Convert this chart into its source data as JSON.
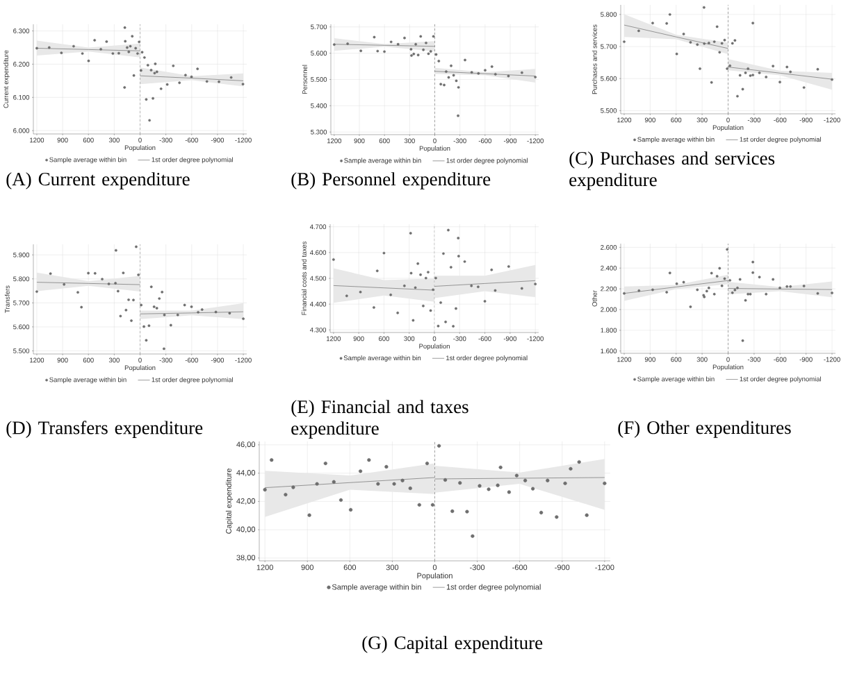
{
  "chart_data": [
    {
      "type": "scatter",
      "title": "(A) Current expenditure",
      "xlabel": "Population",
      "ylabel": "Current expenditure",
      "xlim": [
        1240,
        -1240
      ],
      "ylim": [
        5990,
        6320
      ],
      "xticks": [
        1200,
        900,
        600,
        300,
        0,
        -300,
        -600,
        -900,
        -1200
      ],
      "yticks": [
        {
          "value": 6000,
          "label": "6.000"
        },
        {
          "value": 6100,
          "label": "6.100"
        },
        {
          "value": 6200,
          "label": "6.200"
        },
        {
          "value": 6300,
          "label": "6.300"
        }
      ],
      "grid": true,
      "legend": "bottom",
      "marker": "circle",
      "ref_lines": [
        {
          "axis": "x",
          "value": 0,
          "color": "#555555",
          "line_style": "dashed"
        }
      ],
      "series": [
        {
          "name": "Sample average within bin",
          "color": "#6e6e6e",
          "x": [
            1200,
            1056,
            914,
            772,
            670,
            598,
            528,
            456,
            389,
            316,
            247,
            180,
            177,
            172,
            150,
            131,
            113,
            91,
            72,
            51,
            29,
            11,
            -11,
            -24,
            -51,
            -72,
            -91,
            -110,
            -129,
            -150,
            -169,
            -177,
            -196,
            -244,
            -316,
            -386,
            -458,
            -528,
            -598,
            -668,
            -777,
            -917,
            -1059,
            -1196
          ],
          "values": [
            6248,
            6250,
            6234,
            6254,
            6232,
            6210,
            6272,
            6245,
            6268,
            6232,
            6233,
            6130,
            6310,
            6269,
            6250,
            6237,
            6254,
            6284,
            6166,
            6248,
            6232,
            6267,
            6181,
            6236,
            6220,
            6094,
            6197,
            6031,
            6182,
            6097,
            6173,
            6201,
            6177,
            6126,
            6139,
            6195,
            6144,
            6167,
            6162,
            6186,
            6148,
            6147,
            6160,
            6140
          ]
        },
        {
          "name": "1st order degree polynomial",
          "type": "line",
          "marker": "none",
          "line_style": "solid",
          "color": "#5a5a5a",
          "x": [
            1200,
            600,
            0
          ],
          "values": [
            6248,
            6244,
            6240
          ],
          "lower": [
            6226,
            6238,
            6220
          ],
          "upper": [
            6271,
            6250,
            6262
          ]
        },
        {
          "type": "line",
          "marker": "none",
          "line_style": "solid",
          "color": "#5a5a5a",
          "x": [
            0,
            -600,
            -1200
          ],
          "values": [
            6165,
            6158,
            6150
          ],
          "lower": [
            6140,
            6152,
            6133
          ],
          "upper": [
            6190,
            6164,
            6172
          ]
        }
      ]
    },
    {
      "type": "scatter",
      "title": "(B) Personnel expenditure",
      "xlabel": "Population",
      "ylabel": "Personnel",
      "xlim": [
        1240,
        -1240
      ],
      "ylim": [
        5290,
        5710
      ],
      "xticks": [
        1200,
        900,
        600,
        300,
        0,
        -300,
        -600,
        -900,
        -1200
      ],
      "yticks": [
        {
          "value": 5300,
          "label": "5.300"
        },
        {
          "value": 5400,
          "label": "5.400"
        },
        {
          "value": 5500,
          "label": "5.500"
        },
        {
          "value": 5600,
          "label": "5.600"
        },
        {
          "value": 5700,
          "label": "5.700"
        }
      ],
      "grid": true,
      "legend": "bottom",
      "marker": "circle",
      "ref_lines": [
        {
          "axis": "x",
          "value": 0,
          "color": "#555555",
          "line_style": "dashed"
        }
      ],
      "series": [
        {
          "name": "Sample average within bin",
          "color": "#6e6e6e",
          "x": [
            1200,
            1040,
            882,
            722,
            682,
            601,
            521,
            438,
            361,
            283,
            278,
            251,
            227,
            198,
            168,
            136,
            104,
            75,
            48,
            16,
            -16,
            -48,
            -72,
            -112,
            -136,
            -166,
            -195,
            -225,
            -257,
            -283,
            -278,
            -361,
            -441,
            -521,
            -601,
            -682,
            -724,
            -879,
            -1040,
            -1200
          ],
          "values": [
            5633,
            5636,
            5609,
            5661,
            5608,
            5606,
            5643,
            5634,
            5658,
            5615,
            5591,
            5597,
            5634,
            5593,
            5664,
            5613,
            5639,
            5598,
            5607,
            5664,
            5595,
            5570,
            5482,
            5479,
            5530,
            5508,
            5552,
            5516,
            5495,
            5470,
            5362,
            5574,
            5527,
            5523,
            5535,
            5549,
            5520,
            5513,
            5526,
            5509
          ]
        },
        {
          "name": "1st order degree polynomial",
          "type": "line",
          "marker": "none",
          "line_style": "solid",
          "color": "#5a5a5a",
          "x": [
            1200,
            600,
            0
          ],
          "values": [
            5634,
            5630,
            5626
          ],
          "lower": [
            5609,
            5625,
            5607
          ],
          "upper": [
            5657,
            5635,
            5646
          ]
        },
        {
          "type": "line",
          "marker": "none",
          "line_style": "solid",
          "color": "#5a5a5a",
          "x": [
            0,
            -600,
            -1200
          ],
          "values": [
            5531,
            5522,
            5513
          ],
          "lower": [
            5521,
            5516,
            5488
          ],
          "upper": [
            5544,
            5528,
            5540
          ]
        }
      ]
    },
    {
      "type": "scatter",
      "title": "(C) Purchases and services expenditure",
      "xlabel": "Population",
      "ylabel": "Purchases and services",
      "xlim": [
        1240,
        -1240
      ],
      "ylim": [
        5490,
        5830
      ],
      "xticks": [
        1200,
        900,
        600,
        300,
        0,
        -300,
        -600,
        -900,
        -1200
      ],
      "yticks": [
        {
          "value": 5500,
          "label": "5.500"
        },
        {
          "value": 5600,
          "label": "5.600"
        },
        {
          "value": 5700,
          "label": "5.700"
        },
        {
          "value": 5800,
          "label": "5.800"
        }
      ],
      "grid": true,
      "legend": "bottom",
      "marker": "circle",
      "ref_lines": [
        {
          "axis": "x",
          "value": 0,
          "color": "#555555",
          "line_style": "dashed"
        }
      ],
      "series": [
        {
          "name": "Sample average within bin",
          "color": "#6e6e6e",
          "x": [
            1200,
            1032,
            871,
            709,
            672,
            593,
            513,
            434,
            355,
            325,
            275,
            278,
            222,
            191,
            159,
            127,
            98,
            71,
            40,
            11,
            -21,
            -50,
            -79,
            -138,
            -169,
            -108,
            -201,
            -230,
            -257,
            -286,
            -286,
            -362,
            -439,
            -519,
            -598,
            -680,
            -720,
            -876,
            -1035,
            -1200
          ],
          "values": [
            5715,
            5749,
            5773,
            5772,
            5800,
            5677,
            5739,
            5713,
            5706,
            5631,
            5709,
            5822,
            5711,
            5588,
            5715,
            5762,
            5682,
            5710,
            5720,
            5631,
            5640,
            5710,
            5719,
            5610,
            5567,
            5545,
            5618,
            5631,
            5609,
            5611,
            5773,
            5618,
            5605,
            5639,
            5589,
            5636,
            5621,
            5572,
            5629,
            5597
          ]
        },
        {
          "name": "1st order degree polynomial",
          "type": "line",
          "marker": "none",
          "line_style": "solid",
          "color": "#5a5a5a",
          "x": [
            1200,
            600,
            0
          ],
          "values": [
            5767,
            5730,
            5694
          ],
          "lower": [
            5730,
            5723,
            5676
          ],
          "upper": [
            5801,
            5737,
            5712
          ]
        },
        {
          "type": "line",
          "marker": "none",
          "line_style": "solid",
          "color": "#5a5a5a",
          "x": [
            0,
            -600,
            -1200
          ],
          "values": [
            5636,
            5617,
            5598
          ],
          "lower": [
            5626,
            5610,
            5565
          ],
          "upper": [
            5661,
            5624,
            5618
          ]
        }
      ]
    },
    {
      "type": "scatter",
      "title": "(D) Transfers expenditure",
      "xlabel": "Population",
      "ylabel": "Transfers",
      "xlim": [
        1240,
        -1240
      ],
      "ylim": [
        5487,
        5944
      ],
      "xticks": [
        1200,
        900,
        600,
        300,
        0,
        -300,
        -600,
        -900,
        -1200
      ],
      "yticks": [
        {
          "value": 5500,
          "label": "5.500"
        },
        {
          "value": 5600,
          "label": "5.600"
        },
        {
          "value": 5700,
          "label": "5.700"
        },
        {
          "value": 5800,
          "label": "5.800"
        },
        {
          "value": 5900,
          "label": "5.900"
        }
      ],
      "grid": true,
      "legend": "bottom",
      "marker": "circle",
      "ref_lines": [
        {
          "axis": "x",
          "value": 0,
          "color": "#555555",
          "line_style": "dashed"
        }
      ],
      "series": [
        {
          "name": "Sample average within bin",
          "color": "#6e6e6e",
          "x": [
            1200,
            1041,
            883,
            723,
            681,
            601,
            523,
            440,
            363,
            286,
            280,
            256,
            227,
            195,
            163,
            133,
            101,
            77,
            45,
            19,
            -13,
            -45,
            -72,
            -104,
            -131,
            -163,
            -195,
            -224,
            -256,
            -283,
            -278,
            -358,
            -438,
            -518,
            -598,
            -675,
            -721,
            -881,
            -1041,
            -1200
          ],
          "values": [
            5747,
            5822,
            5777,
            5744,
            5682,
            5824,
            5823,
            5799,
            5779,
            5782,
            5919,
            5749,
            5645,
            5825,
            5670,
            5713,
            5626,
            5712,
            5934,
            5817,
            5691,
            5601,
            5544,
            5605,
            5767,
            5684,
            5678,
            5718,
            5745,
            5650,
            5509,
            5607,
            5650,
            5691,
            5684,
            5661,
            5672,
            5662,
            5657,
            5634
          ]
        },
        {
          "name": "1st order degree polynomial",
          "type": "line",
          "marker": "none",
          "line_style": "solid",
          "color": "#5a5a5a",
          "x": [
            1200,
            600,
            0
          ],
          "values": [
            5786,
            5781,
            5776
          ],
          "lower": [
            5749,
            5771,
            5747
          ],
          "upper": [
            5826,
            5791,
            5812
          ]
        },
        {
          "type": "line",
          "marker": "none",
          "line_style": "solid",
          "color": "#5a5a5a",
          "x": [
            0,
            -600,
            -1200
          ],
          "values": [
            5654,
            5658,
            5663
          ],
          "lower": [
            5632,
            5648,
            5632
          ],
          "upper": [
            5668,
            5668,
            5699
          ]
        }
      ]
    },
    {
      "type": "scatter",
      "title": "(E) Financial and taxes expenditure",
      "xlabel": "Population",
      "ylabel": "Financial costs and taxes",
      "xlim": [
        1240,
        -1240
      ],
      "ylim": [
        4290,
        4710
      ],
      "xticks": [
        1200,
        900,
        600,
        300,
        0,
        -300,
        -600,
        -900,
        -1200
      ],
      "yticks": [
        {
          "value": 4300,
          "label": "4.300"
        },
        {
          "value": 4400,
          "label": "4.400"
        },
        {
          "value": 4500,
          "label": "4.500"
        },
        {
          "value": 4600,
          "label": "4.600"
        },
        {
          "value": 4700,
          "label": "4.700"
        }
      ],
      "grid": true,
      "legend": "bottom",
      "marker": "circle",
      "ref_lines": [
        {
          "axis": "x",
          "value": 0,
          "color": "#555555",
          "line_style": "dashed"
        }
      ],
      "series": [
        {
          "name": "Sample average within bin",
          "color": "#6e6e6e",
          "x": [
            1200,
            1043,
            880,
            720,
            680,
            600,
            520,
            437,
            357,
            283,
            277,
            253,
            227,
            197,
            165,
            133,
            101,
            75,
            45,
            16,
            -16,
            -45,
            -75,
            -107,
            -133,
            -165,
            -197,
            -224,
            -256,
            -283,
            -288,
            -360,
            -440,
            -520,
            -600,
            -680,
            -723,
            -883,
            -1040,
            -1200
          ],
          "values": [
            4573,
            4432,
            4447,
            4387,
            4529,
            4598,
            4436,
            4366,
            4471,
            4675,
            4520,
            4337,
            4464,
            4557,
            4514,
            4393,
            4501,
            4524,
            4375,
            4456,
            4501,
            4315,
            4406,
            4596,
            4331,
            4687,
            4543,
            4314,
            4383,
            4656,
            4586,
            4565,
            4471,
            4467,
            4411,
            4533,
            4453,
            4546,
            4461,
            4478
          ]
        },
        {
          "name": "1st order degree polynomial",
          "type": "line",
          "marker": "none",
          "line_style": "solid",
          "color": "#5a5a5a",
          "x": [
            1200,
            600,
            0
          ],
          "values": [
            4472,
            4463,
            4454
          ],
          "lower": [
            4405,
            4433,
            4409
          ],
          "upper": [
            4539,
            4493,
            4499
          ]
        },
        {
          "type": "line",
          "marker": "none",
          "line_style": "solid",
          "color": "#5a5a5a",
          "x": [
            0,
            -600,
            -1200
          ],
          "values": [
            4469,
            4480,
            4491
          ],
          "lower": [
            4423,
            4450,
            4427
          ],
          "upper": [
            4510,
            4510,
            4552
          ]
        }
      ]
    },
    {
      "type": "scatter",
      "title": "(F) Other expenditures",
      "xlabel": "Population",
      "ylabel": "Other",
      "xlim": [
        1240,
        -1240
      ],
      "ylim": [
        1578,
        2636
      ],
      "xticks": [
        1200,
        900,
        600,
        300,
        0,
        -300,
        -600,
        -900,
        -1200
      ],
      "yticks": [
        {
          "value": 1600,
          "label": "1.600"
        },
        {
          "value": 1800,
          "label": "1.800"
        },
        {
          "value": 2000,
          "label": "2.000"
        },
        {
          "value": 2200,
          "label": "2.200"
        },
        {
          "value": 2400,
          "label": "2.400"
        },
        {
          "value": 2600,
          "label": "2.600"
        }
      ],
      "grid": true,
      "legend": "bottom",
      "marker": "circle",
      "ref_lines": [
        {
          "axis": "x",
          "value": 0,
          "color": "#555555",
          "line_style": "dashed"
        }
      ],
      "series": [
        {
          "name": "Sample average within bin",
          "color": "#6e6e6e",
          "x": [
            1200,
            1029,
            871,
            709,
            672,
            593,
            513,
            434,
            355,
            283,
            275,
            246,
            222,
            191,
            159,
            127,
            98,
            71,
            40,
            11,
            -21,
            -50,
            -79,
            -108,
            -138,
            -169,
            -201,
            -230,
            -257,
            -286,
            -286,
            -362,
            -439,
            -519,
            -598,
            -680,
            -720,
            -876,
            -1035,
            -1200
          ],
          "values": [
            2156,
            2182,
            2191,
            2167,
            2353,
            2249,
            2264,
            2027,
            2191,
            2138,
            2122,
            2178,
            2209,
            2351,
            2149,
            2322,
            2398,
            2229,
            2298,
            2580,
            2282,
            2162,
            2189,
            2209,
            2291,
            1700,
            2089,
            2149,
            2149,
            2356,
            2458,
            2313,
            2149,
            2291,
            2209,
            2222,
            2222,
            2227,
            2156,
            2160
          ]
        },
        {
          "name": "1st order degree polynomial",
          "type": "line",
          "marker": "none",
          "line_style": "solid",
          "color": "#5a5a5a",
          "x": [
            1200,
            600,
            0
          ],
          "values": [
            2156,
            2218,
            2280
          ],
          "lower": [
            2084,
            2198,
            2244
          ],
          "upper": [
            2222,
            2238,
            2336
          ]
        },
        {
          "type": "line",
          "marker": "none",
          "line_style": "solid",
          "color": "#5a5a5a",
          "x": [
            0,
            -600,
            -1200
          ],
          "values": [
            2204,
            2198,
            2193
          ],
          "lower": [
            2147,
            2178,
            2118
          ],
          "upper": [
            2267,
            2218,
            2271
          ]
        }
      ]
    },
    {
      "type": "scatter",
      "title": "(G) Capital expenditure",
      "xlabel": "Population",
      "ylabel": "Capital expenditure",
      "xlim": [
        1240,
        -1240
      ],
      "ylim": [
        37.8,
        46.24
      ],
      "xticks": [
        1200,
        900,
        600,
        300,
        0,
        -300,
        -600,
        -900,
        -1200
      ],
      "yticks": [
        {
          "value": 38,
          "label": "38,00"
        },
        {
          "value": 40,
          "label": "40,00"
        },
        {
          "value": 42,
          "label": "42,00"
        },
        {
          "value": 44,
          "label": "44,00"
        },
        {
          "value": 46,
          "label": "46,00"
        }
      ],
      "grid": true,
      "legend": "bottom",
      "marker": "circle",
      "ref_lines": [
        {
          "axis": "x",
          "value": 0,
          "color": "#555555",
          "line_style": "dashed"
        }
      ],
      "series": [
        {
          "name": "Sample average within bin",
          "color": "#6e6e6e",
          "x": [
            1200,
            1153,
            1054,
            1000,
            886,
            832,
            772,
            713,
            663,
            594,
            525,
            465,
            401,
            342,
            287,
            228,
            173,
            109,
            54,
            15,
            -30,
            -74,
            -124,
            -178,
            -228,
            -267,
            -317,
            -381,
            -445,
            -465,
            -525,
            -579,
            -639,
            -693,
            -752,
            -797,
            -861,
            -921,
            -960,
            -1020,
            -1074,
            -1200
          ],
          "values": [
            42.83,
            44.93,
            42.48,
            43.0,
            41.03,
            43.24,
            44.69,
            43.38,
            42.1,
            41.41,
            44.14,
            44.93,
            43.24,
            44.45,
            43.24,
            43.48,
            42.93,
            41.76,
            44.69,
            41.76,
            45.93,
            43.52,
            41.31,
            43.31,
            41.28,
            39.55,
            43.1,
            42.86,
            43.14,
            44.41,
            42.66,
            43.83,
            43.48,
            42.9,
            41.21,
            43.48,
            40.9,
            43.28,
            44.31,
            44.79,
            41.03,
            43.28
          ]
        },
        {
          "name": "1st order degree polynomial",
          "type": "line",
          "marker": "none",
          "line_style": "solid",
          "color": "#5a5a5a",
          "x": [
            1200,
            600,
            0
          ],
          "values": [
            42.97,
            43.33,
            43.69
          ],
          "lower": [
            40.9,
            42.83,
            42.52
          ],
          "upper": [
            44.17,
            43.83,
            44.69
          ]
        },
        {
          "type": "line",
          "marker": "none",
          "line_style": "solid",
          "color": "#5a5a5a",
          "x": [
            0,
            -600,
            -1200
          ],
          "values": [
            43.59,
            43.64,
            43.69
          ],
          "lower": [
            42.62,
            43.24,
            41.4
          ],
          "upper": [
            44.52,
            44.04,
            45.0
          ]
        }
      ]
    }
  ]
}
